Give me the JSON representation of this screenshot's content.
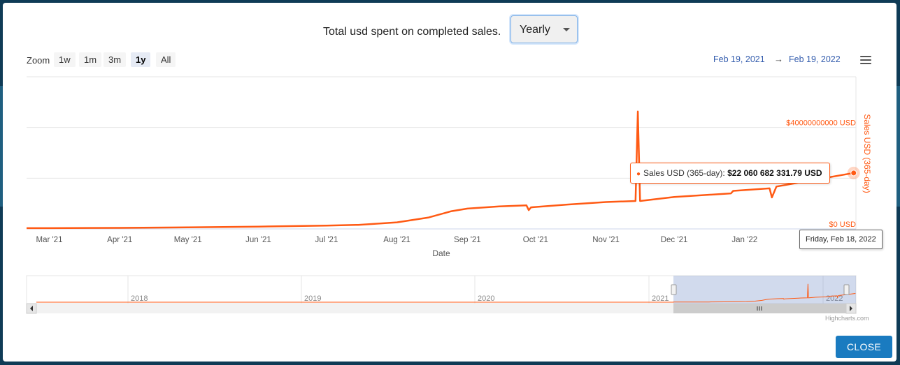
{
  "dialog": {
    "title": "Total usd spent on completed sales.",
    "period_select": {
      "value": "Yearly"
    },
    "close_label": "CLOSE"
  },
  "zoom": {
    "label": "Zoom",
    "buttons": [
      "1w",
      "1m",
      "3m",
      "1y",
      "All"
    ],
    "active": "1y"
  },
  "range": {
    "from": "Feb 19, 2021",
    "to": "Feb 19, 2022",
    "arrow": "→"
  },
  "tooltip": {
    "series": "Sales USD (365-day):",
    "value": "$22 060 682 331.79 USD",
    "date": "Friday, Feb 18, 2022"
  },
  "credits": "Highcharts.com",
  "colors": {
    "series": "#ff5a14",
    "accent": "#335cad",
    "close": "#1a7bc0"
  },
  "chart_data": {
    "type": "line",
    "xlabel": "Date",
    "ylabel": "Sales USD (365-day)",
    "x_ticks": [
      "Mar '21",
      "Apr '21",
      "May '21",
      "Jun '21",
      "Jul '21",
      "Aug '21",
      "Sep '21",
      "Oct '21",
      "Nov '21",
      "Dec '21",
      "Jan '22"
    ],
    "y_ticks": [
      "$0 USD",
      "$40000000000 USD"
    ],
    "ylim": [
      0,
      60000000000
    ],
    "grid": true,
    "navigator_labels": [
      "2018",
      "2019",
      "2020",
      "2021",
      "2022"
    ],
    "series": [
      {
        "name": "Sales USD (365-day)",
        "points": [
          [
            "2021-02-19",
            300000000
          ],
          [
            "2021-03-01",
            300000000
          ],
          [
            "2021-04-01",
            400000000
          ],
          [
            "2021-05-01",
            600000000
          ],
          [
            "2021-06-01",
            900000000
          ],
          [
            "2021-07-01",
            1300000000
          ],
          [
            "2021-07-15",
            1600000000
          ],
          [
            "2021-08-01",
            2600000000
          ],
          [
            "2021-08-15",
            4500000000
          ],
          [
            "2021-08-25",
            7000000000
          ],
          [
            "2021-09-01",
            8000000000
          ],
          [
            "2021-09-15",
            8900000000
          ],
          [
            "2021-09-27",
            9300000000
          ],
          [
            "2021-09-28",
            7400000000
          ],
          [
            "2021-09-29",
            8500000000
          ],
          [
            "2021-10-15",
            9600000000
          ],
          [
            "2021-11-01",
            10600000000
          ],
          [
            "2021-11-14",
            11000000000
          ],
          [
            "2021-11-15",
            46300000000
          ],
          [
            "2021-11-16",
            11000000000
          ],
          [
            "2021-12-01",
            12600000000
          ],
          [
            "2021-12-26",
            14000000000
          ],
          [
            "2021-12-27",
            15000000000
          ],
          [
            "2022-01-12",
            16000000000
          ],
          [
            "2022-01-13",
            12400000000
          ],
          [
            "2022-01-15",
            16700000000
          ],
          [
            "2022-02-18",
            22060682331.79
          ]
        ]
      }
    ]
  }
}
